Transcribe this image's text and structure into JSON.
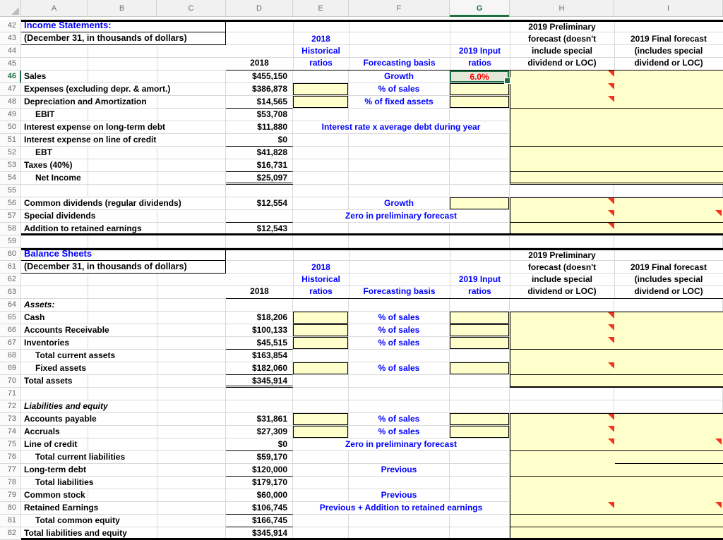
{
  "app": {
    "type": "spreadsheet",
    "visible_rows": "42-82",
    "visible_columns": "A-I"
  },
  "colors": {
    "accent_green": "#1F7145",
    "input_cell_fill": "#FFFFCC",
    "selected_cell_fill": "#E3E8D8",
    "formula_blue": "#0000FF",
    "selected_value_red": "#FF0000",
    "comment_marker_red": "#F4331C",
    "gridline": "#D9D9D9"
  },
  "columns": {
    "letters": [
      "A",
      "B",
      "C",
      "D",
      "E",
      "F",
      "G",
      "H",
      "I"
    ],
    "selected": "G"
  },
  "selected_cell": {
    "ref": "G46",
    "value": "6.0%",
    "row": 46,
    "column": "G"
  },
  "header_bands": {
    "income": {
      "rows": [
        42,
        43,
        44,
        45
      ],
      "title": "Income Statements:",
      "subtitle": "(December 31, in thousands of dollars)",
      "d": "2018",
      "e": "2018\nHistorical\nratios",
      "f": "Forecasting basis",
      "g": "2019 Input\nratios",
      "h": "2019 Preliminary forecast (doesn't include special dividend or LOC)",
      "i": "2019 Final forecast (includes special dividend or LOC)"
    },
    "balance": {
      "rows": [
        60,
        61,
        62,
        63
      ],
      "title": "Balance Sheets",
      "subtitle": "(December 31, in thousands of dollars)",
      "d": "2018",
      "e": "2018\nHistorical\nratios",
      "f": "Forecasting basis",
      "g": "2019 Input\nratios",
      "h": "2019 Preliminary forecast (doesn't include special dividend or LOC)",
      "i": "2019 Final forecast (includes special dividend or LOC)"
    }
  },
  "rows": [
    {
      "n": 46,
      "label": "Sales",
      "d": "$455,150",
      "f": "Growth",
      "f_span": "F",
      "g": "selected",
      "g_value": "6.0%",
      "hi": "yellow",
      "tri": "H"
    },
    {
      "n": 47,
      "label": "Expenses (excluding depr. & amort.)",
      "d": "$386,878",
      "e": "input",
      "f": "% of sales",
      "f_span": "F",
      "g": "input",
      "hi": "yellow",
      "tri": "H"
    },
    {
      "n": 48,
      "label": "Depreciation and Amortization",
      "d": "$14,565",
      "e": "input",
      "f": "% of fixed assets",
      "f_span": "F",
      "g": "input",
      "hi": "yellow",
      "tri": "H"
    },
    {
      "n": 49,
      "label": "EBIT",
      "style": "indent",
      "d": "$53,708",
      "hi": "yellow"
    },
    {
      "n": 50,
      "label": "Interest expense on long-term debt",
      "d": "$11,880",
      "f": "Interest rate x average debt during year",
      "f_span": "EG",
      "hi": "yellow"
    },
    {
      "n": 51,
      "label": "Interest expense on line of credit",
      "d": "$0",
      "hi": "yellow"
    },
    {
      "n": 52,
      "label": "EBT",
      "style": "indent",
      "d": "$41,828",
      "hi": "yellow"
    },
    {
      "n": 53,
      "label": "Taxes (40%)",
      "d": "$16,731",
      "hi": "yellow"
    },
    {
      "n": 54,
      "label": "Net Income",
      "style": "indent",
      "d": "$25,097",
      "hi": "yellow"
    },
    {
      "n": 55,
      "label": "",
      "hi": "white"
    },
    {
      "n": 56,
      "label": "Common dividends (regular dividends)",
      "d": "$12,554",
      "f": "Growth",
      "f_span": "F",
      "g": "input",
      "hi": "yellow",
      "tri": "H"
    },
    {
      "n": 57,
      "label": "Special dividends",
      "d": "",
      "f": "Zero in preliminary forecast",
      "f_span": "EG",
      "hi": "yellow",
      "tri": "HI"
    },
    {
      "n": 58,
      "label": "Addition to retained earnings",
      "d": "$12,543",
      "hi": "yellow",
      "tri": "H"
    },
    {
      "n": 59,
      "label": "",
      "hi": "white"
    },
    {
      "n": 64,
      "label": "Assets:",
      "style": "italic",
      "hi": "white"
    },
    {
      "n": 65,
      "label": "Cash",
      "d": "$18,206",
      "e": "input",
      "f": "% of sales",
      "f_span": "F",
      "g": "input",
      "hi": "yellow",
      "tri": "H"
    },
    {
      "n": 66,
      "label": "Accounts Receivable",
      "d": "$100,133",
      "e": "input",
      "f": "% of sales",
      "f_span": "F",
      "g": "input",
      "hi": "yellow",
      "tri": "H"
    },
    {
      "n": 67,
      "label": "Inventories",
      "d": "$45,515",
      "e": "input",
      "f": "% of sales",
      "f_span": "F",
      "g": "input",
      "hi": "yellow",
      "tri": "H"
    },
    {
      "n": 68,
      "label": "Total current assets",
      "style": "indent",
      "d": "$163,854",
      "hi": "yellow"
    },
    {
      "n": 69,
      "label": "Fixed assets",
      "style": "indent",
      "d": "$182,060",
      "e": "input",
      "f": "% of sales",
      "f_span": "F",
      "g": "input",
      "hi": "yellow",
      "tri": "H"
    },
    {
      "n": 70,
      "label": "Total assets",
      "d": "$345,914",
      "hi": "yellow"
    },
    {
      "n": 71,
      "label": "",
      "hi": "white"
    },
    {
      "n": 72,
      "label": "Liabilities and equity",
      "style": "italic",
      "hi": "white"
    },
    {
      "n": 73,
      "label": "Accounts payable",
      "d": "$31,861",
      "e": "input",
      "f": "% of sales",
      "f_span": "F",
      "g": "input",
      "hi": "yellow",
      "tri": "H"
    },
    {
      "n": 74,
      "label": "Accruals",
      "d": "$27,309",
      "e": "input",
      "f": "% of sales",
      "f_span": "F",
      "g": "input",
      "hi": "yellow",
      "tri": "H"
    },
    {
      "n": 75,
      "label": "Line of credit",
      "d": "$0",
      "f": "Zero in preliminary forecast",
      "f_span": "EG",
      "hi": "yellow",
      "tri": "HI"
    },
    {
      "n": 76,
      "label": "Total current liabilities",
      "style": "indent",
      "d": "$59,170",
      "hi": "yellow"
    },
    {
      "n": 77,
      "label": "Long-term debt",
      "d": "$120,000",
      "f": "Previous",
      "f_span": "F",
      "hi": "yellow"
    },
    {
      "n": 78,
      "label": "Total liabilities",
      "style": "indent",
      "d": "$179,170",
      "hi": "yellow"
    },
    {
      "n": 79,
      "label": "Common stock",
      "d": "$60,000",
      "f": "Previous",
      "f_span": "F",
      "hi": "yellow"
    },
    {
      "n": 80,
      "label": "Retained Earnings",
      "d": "$106,745",
      "f": "Previous + Addition to retained earnings",
      "f_span": "EG",
      "hi": "yellow",
      "tri": "HI"
    },
    {
      "n": 81,
      "label": "Total common equity",
      "style": "indent",
      "d": "$166,745",
      "hi": "yellow"
    },
    {
      "n": 82,
      "label": "Total liabilities and equity",
      "d": "$345,914",
      "hi": "yellow"
    }
  ]
}
